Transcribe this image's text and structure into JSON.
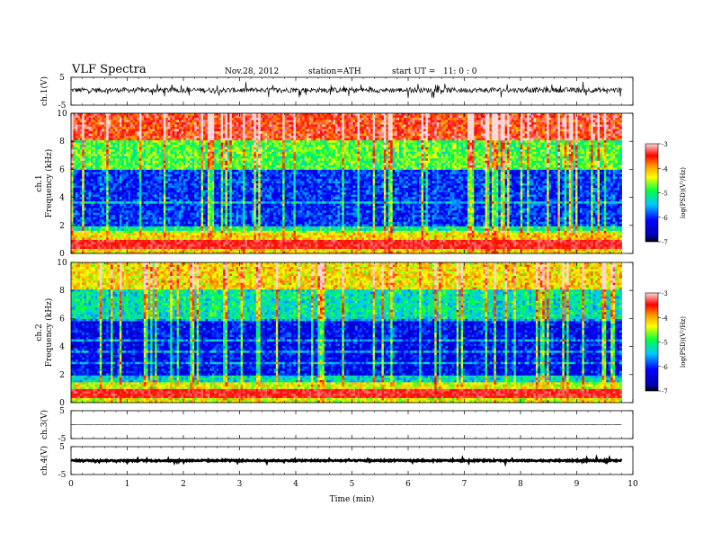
{
  "header": {
    "title": "VLF Spectra",
    "date": "Nov.28, 2012",
    "station": "station=ATH",
    "start_ut": "start UT =   11: 0 : 0"
  },
  "chart_data": [
    {
      "type": "line",
      "panel": "ch1-waveform",
      "ylabel": "ch.1(V)",
      "yticks": [
        "5",
        "-5"
      ],
      "ylim": [
        -5,
        5
      ],
      "x_range_min": [
        0,
        9.8
      ],
      "description_values": {
        "baseline": 0.4,
        "noise_amplitude": 1.5
      }
    },
    {
      "type": "heatmap",
      "panel": "ch1-spectrogram",
      "ylabel": "ch.1\nFrequency (kHz)",
      "ylabel_line1": "ch.1",
      "ylabel_line2": "Frequency (kHz)",
      "yticks": [
        "10",
        "8",
        "6",
        "4",
        "2",
        "0"
      ],
      "ylim": [
        0,
        10
      ],
      "colorbar": {
        "label": "log(PSD)(V²/Hz)",
        "ticks": [
          "-3",
          "-4",
          "-5",
          "-6",
          "-7"
        ],
        "range": [
          -7,
          -3
        ]
      },
      "bands_khz": [
        {
          "from": 0,
          "to": 1.5,
          "level": -4.2
        },
        {
          "from": 2,
          "to": 6,
          "level": -6.0
        },
        {
          "from": 6,
          "to": 8,
          "level": -4.8
        },
        {
          "from": 8,
          "to": 10,
          "level": -3.5
        }
      ]
    },
    {
      "type": "heatmap",
      "panel": "ch2-spectrogram",
      "ylabel_line1": "ch.2",
      "ylabel_line2": "Frequency (kHz)",
      "yticks": [
        "10",
        "8",
        "6",
        "4",
        "2",
        "0"
      ],
      "ylim": [
        0,
        10
      ],
      "colorbar": {
        "label": "log(PSD)(V²/Hz)",
        "ticks": [
          "-3",
          "-4",
          "-5",
          "-6",
          "-7"
        ],
        "range": [
          -7,
          -3
        ]
      },
      "bands_khz": [
        {
          "from": 0,
          "to": 1.5,
          "level": -4.4
        },
        {
          "from": 2,
          "to": 6,
          "level": -6.2
        },
        {
          "from": 6,
          "to": 8,
          "level": -5.2
        },
        {
          "from": 8,
          "to": 10,
          "level": -4.2
        }
      ]
    },
    {
      "type": "line",
      "panel": "ch3-waveform",
      "ylabel": "ch.3(V)",
      "yticks": [
        "5",
        "-5"
      ],
      "ylim": [
        -5,
        5
      ],
      "description_values": {
        "baseline": 0.0,
        "noise_amplitude": 0.05
      }
    },
    {
      "type": "line",
      "panel": "ch4-waveform",
      "ylabel": "ch.4(V)",
      "yticks": [
        "5",
        "-5"
      ],
      "ylim": [
        -5,
        5
      ],
      "description_values": {
        "baseline": 0.0,
        "noise_amplitude": 0.4
      }
    }
  ],
  "x_axis": {
    "label": "Time (min)",
    "ticks": [
      "0",
      "1",
      "2",
      "3",
      "4",
      "5",
      "6",
      "7",
      "8",
      "9",
      "10"
    ],
    "range": [
      0,
      10
    ],
    "data_end": 9.8
  }
}
